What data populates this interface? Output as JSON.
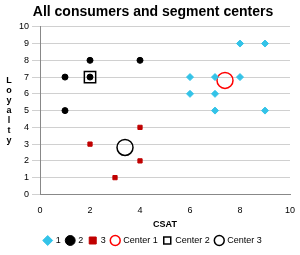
{
  "chart_data": {
    "type": "scatter",
    "title": "All consumers and segment centers",
    "x_label": "CSAT",
    "y_label": "Loyalty",
    "xlim": [
      0,
      10
    ],
    "xticks": [
      0,
      2,
      4,
      6,
      8,
      10
    ],
    "ylim": [
      0,
      10
    ],
    "yticks": [
      0,
      1,
      2,
      3,
      4,
      5,
      6,
      7,
      8,
      9,
      10
    ],
    "grid": true,
    "legend": "bottom",
    "series": [
      {
        "name": "1",
        "color": "#33c3e8",
        "marker": "diamond",
        "x": [
          6,
          6,
          7,
          7,
          7,
          8,
          8,
          9,
          9
        ],
        "values": [
          7,
          6,
          7,
          6,
          5,
          9,
          7,
          9,
          5
        ]
      },
      {
        "name": "2",
        "color": "#000000",
        "marker": "circle",
        "x": [
          1,
          1,
          2,
          2,
          4
        ],
        "values": [
          7,
          5,
          8,
          7,
          8
        ]
      },
      {
        "name": "3",
        "color": "#c00000",
        "marker": "square",
        "x": [
          2,
          3,
          4,
          4
        ],
        "values": [
          3,
          1,
          4,
          2
        ]
      },
      {
        "name": "Center 1",
        "color": "#ff0000",
        "marker": "open circle",
        "x": [
          7.4
        ],
        "values": [
          6.8
        ]
      },
      {
        "name": "Center 2",
        "color": "#000000",
        "marker": "open square",
        "x": [
          2
        ],
        "values": [
          7
        ]
      },
      {
        "name": "Center 3",
        "color": "#000000",
        "marker": "open circle",
        "x": [
          3.4
        ],
        "values": [
          2.8
        ]
      }
    ]
  }
}
